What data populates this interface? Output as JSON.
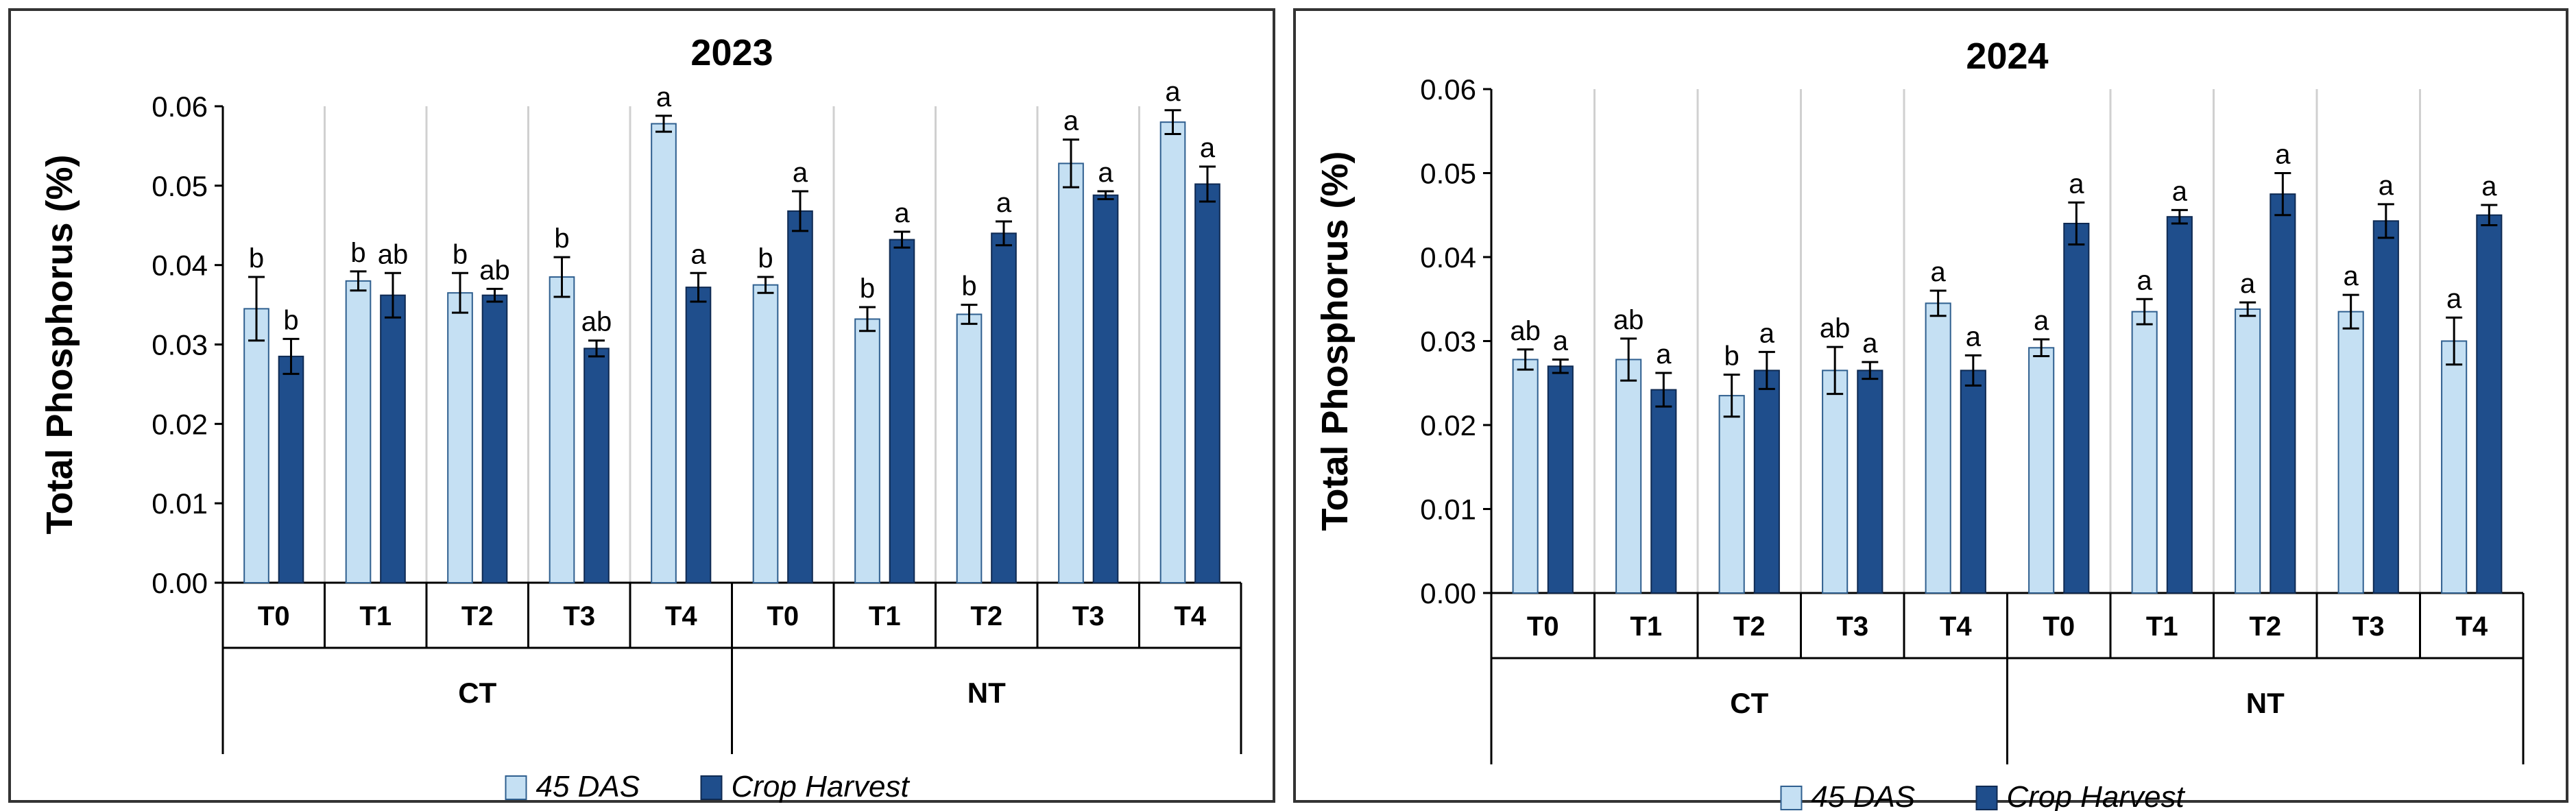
{
  "chart_data": [
    {
      "type": "bar",
      "title": "2023",
      "ylabel": "Total Phosphorus (%)",
      "xlabel": "",
      "ylim": [
        0,
        0.06
      ],
      "yticks": [
        "0.00",
        "0.01",
        "0.02",
        "0.03",
        "0.04",
        "0.05",
        "0.06"
      ],
      "groups": [
        "CT",
        "NT"
      ],
      "categories": [
        "T0",
        "T1",
        "T2",
        "T3",
        "T4",
        "T0",
        "T1",
        "T2",
        "T3",
        "T4"
      ],
      "series": [
        {
          "name": "45 DAS",
          "values": [
            0.0345,
            0.038,
            0.0365,
            0.0385,
            0.0578,
            0.0375,
            0.0332,
            0.0338,
            0.0528,
            0.058
          ],
          "errors": [
            0.004,
            0.0012,
            0.0025,
            0.0025,
            0.001,
            0.001,
            0.0015,
            0.0012,
            0.003,
            0.0015
          ],
          "labels": [
            "b",
            "b",
            "b",
            "b",
            "a",
            "b",
            "b",
            "b",
            "a",
            "a"
          ]
        },
        {
          "name": "Crop Harvest",
          "values": [
            0.0285,
            0.0362,
            0.0362,
            0.0295,
            0.0372,
            0.0468,
            0.0432,
            0.044,
            0.0488,
            0.0502
          ],
          "errors": [
            0.0022,
            0.0028,
            0.0008,
            0.001,
            0.0018,
            0.0025,
            0.001,
            0.0015,
            0.0005,
            0.0022
          ],
          "labels": [
            "b",
            "ab",
            "ab",
            "ab",
            "a",
            "a",
            "a",
            "a",
            "a",
            "a"
          ]
        }
      ],
      "legend": "bottom"
    },
    {
      "type": "bar",
      "title": "2024",
      "ylabel": "Total Phosphorus (%)",
      "xlabel": "",
      "ylim": [
        0,
        0.06
      ],
      "yticks": [
        "0.00",
        "0.01",
        "0.02",
        "0.03",
        "0.04",
        "0.05",
        "0.06"
      ],
      "groups": [
        "CT",
        "NT"
      ],
      "categories": [
        "T0",
        "T1",
        "T2",
        "T3",
        "T4",
        "T0",
        "T1",
        "T2",
        "T3",
        "T4"
      ],
      "series": [
        {
          "name": "45 DAS",
          "values": [
            0.0278,
            0.0278,
            0.0235,
            0.0265,
            0.0345,
            0.0292,
            0.0335,
            0.0338,
            0.0335,
            0.03
          ],
          "errors": [
            0.0012,
            0.0025,
            0.0025,
            0.0028,
            0.0015,
            0.001,
            0.0015,
            0.0008,
            0.002,
            0.0028
          ],
          "labels": [
            "ab",
            "ab",
            "b",
            "ab",
            "a",
            "a",
            "a",
            "a",
            "a",
            "a"
          ]
        },
        {
          "name": "Crop Harvest",
          "values": [
            0.027,
            0.0242,
            0.0265,
            0.0265,
            0.0265,
            0.044,
            0.0448,
            0.0475,
            0.0443,
            0.045
          ],
          "errors": [
            0.0008,
            0.002,
            0.0022,
            0.001,
            0.0018,
            0.0025,
            0.0008,
            0.0025,
            0.002,
            0.0012
          ],
          "labels": [
            "a",
            "a",
            "a",
            "a",
            "a",
            "a",
            "a",
            "a",
            "a",
            "a"
          ]
        }
      ],
      "legend": "bottom"
    }
  ],
  "colors": {
    "das": "#c5e0f3",
    "das_stroke": "#2f5f8f",
    "harvest": "#1f4e8c",
    "harvest_stroke": "#0f2a52",
    "axis": "#000000",
    "frame": "#333333",
    "divider": "#d0d0d0"
  }
}
